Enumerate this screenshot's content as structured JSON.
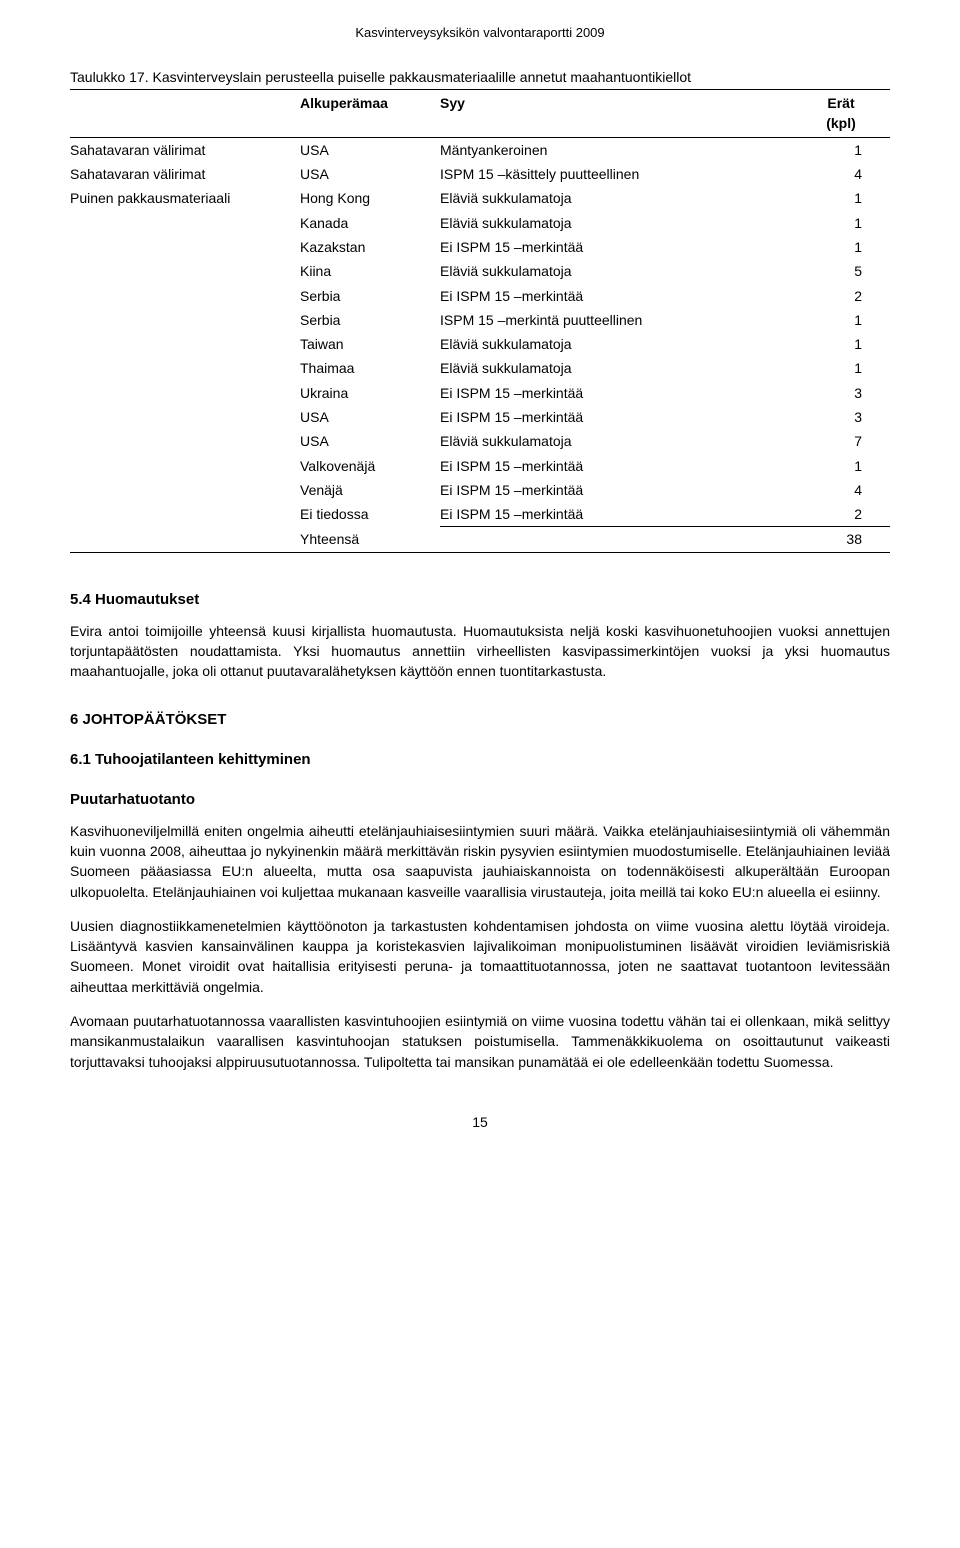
{
  "headerLine": "Kasvinterveysyksikön valvontaraportti 2009",
  "tableCaption": "Taulukko 17. Kasvinterveyslain perusteella puiselle pakkausmateriaalille annetut maahantuontikiellot",
  "columns": {
    "c1": "",
    "c2": "Alkuperämaa",
    "c3": "Syy",
    "c4a": "Erät",
    "c4b": "(kpl)"
  },
  "rows": [
    {
      "a": "Sahatavaran välirimat",
      "b": "USA",
      "c": "Mäntyankeroinen",
      "d": "1"
    },
    {
      "a": "Sahatavaran välirimat",
      "b": "USA",
      "c": "ISPM 15 –käsittely puutteellinen",
      "d": "4"
    },
    {
      "a": "Puinen pakkausmateriaali",
      "b": "Hong Kong",
      "c": "Eläviä sukkulamatoja",
      "d": "1"
    },
    {
      "a": "",
      "b": "Kanada",
      "c": "Eläviä sukkulamatoja",
      "d": "1"
    },
    {
      "a": "",
      "b": "Kazakstan",
      "c": "Ei ISPM 15 –merkintää",
      "d": "1"
    },
    {
      "a": "",
      "b": "Kiina",
      "c": "Eläviä sukkulamatoja",
      "d": "5"
    },
    {
      "a": "",
      "b": "Serbia",
      "c": "Ei ISPM 15 –merkintää",
      "d": "2"
    },
    {
      "a": "",
      "b": "Serbia",
      "c": "ISPM 15 –merkintä puutteellinen",
      "d": "1"
    },
    {
      "a": "",
      "b": "Taiwan",
      "c": "Eläviä sukkulamatoja",
      "d": "1"
    },
    {
      "a": "",
      "b": "Thaimaa",
      "c": "Eläviä sukkulamatoja",
      "d": "1"
    },
    {
      "a": "",
      "b": "Ukraina",
      "c": "Ei ISPM 15 –merkintää",
      "d": "3"
    },
    {
      "a": "",
      "b": "USA",
      "c": "Ei ISPM 15 –merkintää",
      "d": "3"
    },
    {
      "a": "",
      "b": "USA",
      "c": "Eläviä sukkulamatoja",
      "d": "7"
    },
    {
      "a": "",
      "b": "Valkovenäjä",
      "c": "Ei ISPM 15 –merkintää",
      "d": "1"
    },
    {
      "a": "",
      "b": "Venäjä",
      "c": "Ei ISPM 15 –merkintää",
      "d": "4"
    },
    {
      "a": "",
      "b": "Ei tiedossa",
      "c": "Ei ISPM 15 –merkintää",
      "d": "2"
    }
  ],
  "totalLabel": "Yhteensä",
  "totalValue": "38",
  "s54": {
    "title": "5.4 Huomautukset",
    "para": "Evira antoi toimijoille yhteensä kuusi kirjallista huomautusta. Huomautuksista neljä koski kasvihuonetuhoojien vuoksi annettujen torjuntapäätösten noudattamista. Yksi huomautus annettiin virheellisten kasvipassimerkintöjen vuoksi ja yksi huomautus maahantuojalle, joka oli ottanut puutavaralähetyksen käyttöön ennen tuontitarkastusta."
  },
  "s6": {
    "title": "6 JOHTOPÄÄTÖKSET",
    "sub": "6.1 Tuhoojatilanteen kehittyminen",
    "subHeading": "Puutarhatuotanto",
    "p1": "Kasvihuoneviljelmillä eniten ongelmia aiheutti etelänjauhiaisesiintymien suuri määrä. Vaikka etelänjauhiaisesiintymiä oli vähemmän kuin vuonna 2008, aiheuttaa jo nykyinenkin määrä merkittävän riskin pysyvien esiintymien muodostumiselle. Etelänjauhiainen leviää Suomeen pääasiassa EU:n alueelta, mutta osa saapuvista jauhiaiskannoista on todennäköisesti alkuperältään Euroopan ulkopuolelta. Etelänjauhiainen voi kuljettaa mukanaan kasveille vaarallisia virustauteja, joita meillä tai koko EU:n alueella ei esiinny.",
    "p2": "Uusien diagnostiikkamenetelmien käyttöönoton ja tarkastusten kohdentamisen johdosta on viime vuosina alettu löytää viroideja. Lisääntyvä kasvien kansainvälinen kauppa ja koristekasvien lajivalikoiman monipuolistuminen lisäävät viroidien leviämisriskiä Suomeen. Monet viroidit ovat haitallisia erityisesti peruna- ja tomaattituotannossa, joten ne saattavat tuotantoon levitessään aiheuttaa merkittäviä ongelmia.",
    "p3": "Avomaan puutarhatuotannossa vaarallisten kasvintuhoojien esiintymiä on viime vuosina todettu vähän tai ei ollenkaan, mikä selittyy mansikanmustalaikun vaarallisen kasvintuhoojan statuksen poistumisella. Tammenäkkikuolema on osoittautunut vaikeasti torjuttavaksi tuhoojaksi alppiruusutuotannossa. Tulipoltetta tai mansikan punamätää ei ole edelleenkään todettu Suomessa."
  },
  "pageNumber": "15"
}
